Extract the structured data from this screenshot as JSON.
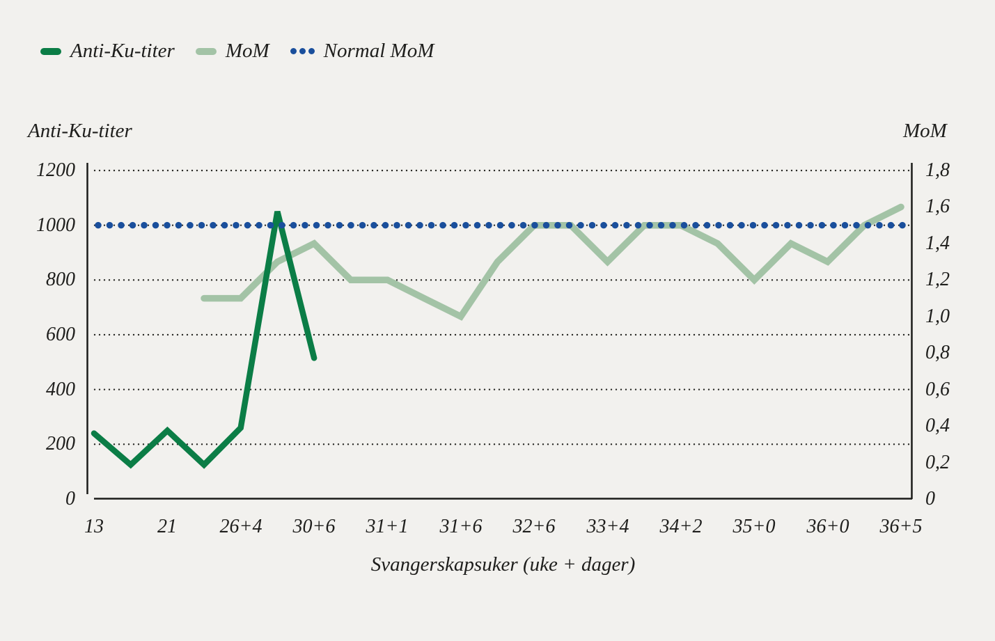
{
  "legend": {
    "items": [
      {
        "label": "Anti-Ku-titer",
        "swatch": "line"
      },
      {
        "label": "MoM",
        "swatch": "line"
      },
      {
        "label": "Normal MoM",
        "swatch": "dots"
      }
    ]
  },
  "colors": {
    "background": "#f2f1ee",
    "text": "#1e1e1c",
    "axis_line": "#1b1b19",
    "gridline": "#262622"
  },
  "chart_data": {
    "type": "line",
    "title": "",
    "x_axis": {
      "title": "Svangerskapsuker (uke + dager)",
      "tick_labels": [
        "13",
        "21",
        "26+4",
        "30+6",
        "31+1",
        "31+6",
        "32+6",
        "33+4",
        "34+2",
        "35+0",
        "36+0",
        "36+5"
      ],
      "tick_positions": [
        0,
        2,
        4,
        6,
        8,
        10,
        12,
        14,
        16,
        18,
        20,
        22
      ],
      "num_positions": 23
    },
    "y_axis_left": {
      "title": "Anti-Ku-titer",
      "tick_labels": [
        "1200",
        "1000",
        "800",
        "600",
        "400",
        "200",
        "0"
      ],
      "tick_values": [
        1200,
        1000,
        800,
        600,
        400,
        200,
        0
      ],
      "range": [
        0,
        1200
      ],
      "gridline_values": [
        1200,
        1000,
        800,
        600,
        400,
        200
      ],
      "grid": "dotted"
    },
    "y_axis_right": {
      "title": "MoM",
      "tick_labels": [
        "1,8",
        "1,6",
        "1,4",
        "1,2",
        "1,0",
        "0,8",
        "0,6",
        "0,4",
        "0,2",
        "0"
      ],
      "tick_values": [
        1.8,
        1.6,
        1.4,
        1.2,
        1.0,
        0.8,
        0.6,
        0.4,
        0.2,
        0
      ],
      "range": [
        0,
        1.8
      ]
    },
    "series": [
      {
        "name": "Anti-Ku-titer",
        "axis": "left",
        "color": "#0b7d46",
        "style": "solid",
        "start_index": 0,
        "values": [
          240,
          125,
          250,
          125,
          260,
          1050,
          515
        ]
      },
      {
        "name": "MoM",
        "axis": "right",
        "color": "#a3c3a6",
        "style": "solid",
        "start_index": 3,
        "values": [
          1.1,
          1.1,
          1.3,
          1.4,
          1.2,
          1.2,
          1.1,
          1.0,
          1.3,
          1.5,
          1.5,
          1.3,
          1.5,
          1.5,
          1.4,
          1.2,
          1.4,
          1.3,
          1.5,
          1.6
        ]
      },
      {
        "name": "Normal MoM",
        "axis": "right",
        "color": "#1a4f9c",
        "style": "dotted",
        "constant_value": 1.5
      }
    ],
    "legend_position": "top-left"
  }
}
